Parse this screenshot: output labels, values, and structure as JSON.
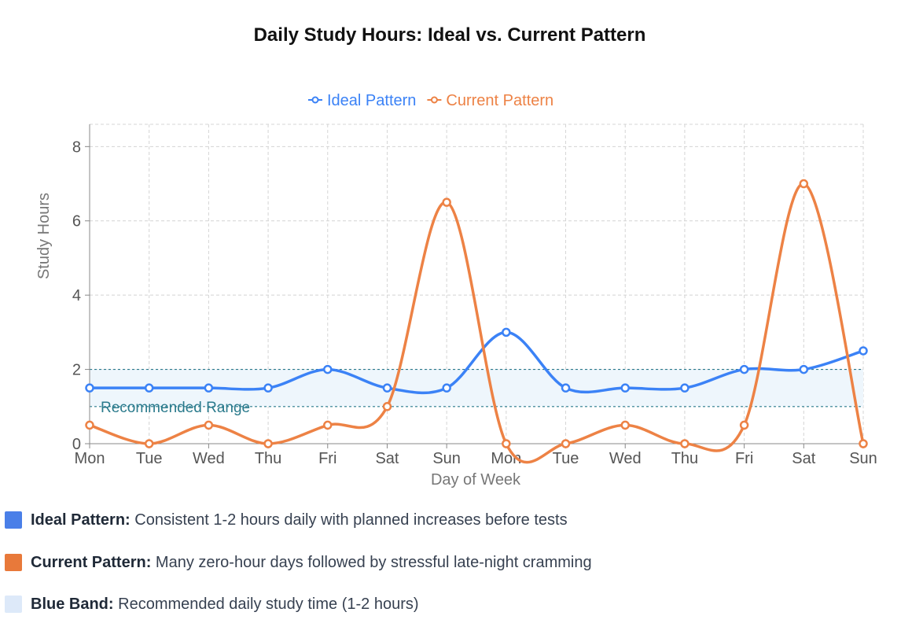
{
  "chart_data": {
    "type": "line",
    "title": "Daily Study Hours: Ideal vs. Current Pattern",
    "xlabel": "Day of Week",
    "ylabel": "Study Hours",
    "categories": [
      "Mon",
      "Tue",
      "Wed",
      "Thu",
      "Fri",
      "Sat",
      "Sun",
      "Mon",
      "Tue",
      "Wed",
      "Thu",
      "Fri",
      "Sat",
      "Sun"
    ],
    "y_ticks": [
      "0",
      "2",
      "4",
      "6",
      "8"
    ],
    "ylim": [
      0,
      8.6
    ],
    "grid": true,
    "legend_position": "top-center",
    "series": [
      {
        "name": "Ideal Pattern",
        "color": "#3b82f6",
        "values": [
          1.5,
          1.5,
          1.5,
          1.5,
          2,
          1.5,
          1.5,
          3,
          1.5,
          1.5,
          1.5,
          2,
          2,
          2.5
        ]
      },
      {
        "name": "Current Pattern",
        "color": "#ed8245",
        "values": [
          0.5,
          0,
          0.5,
          0,
          0.5,
          1,
          6.5,
          0,
          0,
          0.5,
          0,
          0.5,
          7,
          0
        ]
      }
    ],
    "band": {
      "label": "Recommended Range",
      "y_range": [
        1,
        2
      ],
      "fill": "#eef6fc",
      "line_color": "#2a7a8c"
    }
  },
  "notes": [
    {
      "swatch_color": "#4a7fe8",
      "label": "Ideal Pattern:",
      "text": "Consistent 1-2 hours daily with planned increases before tests"
    },
    {
      "swatch_color": "#e8793a",
      "label": "Current Pattern:",
      "text": "Many zero-hour days followed by stressful late-night cramming"
    },
    {
      "swatch_color": "#dde9f9",
      "label": "Blue Band:",
      "text": "Recommended daily study time (1-2 hours)"
    }
  ]
}
